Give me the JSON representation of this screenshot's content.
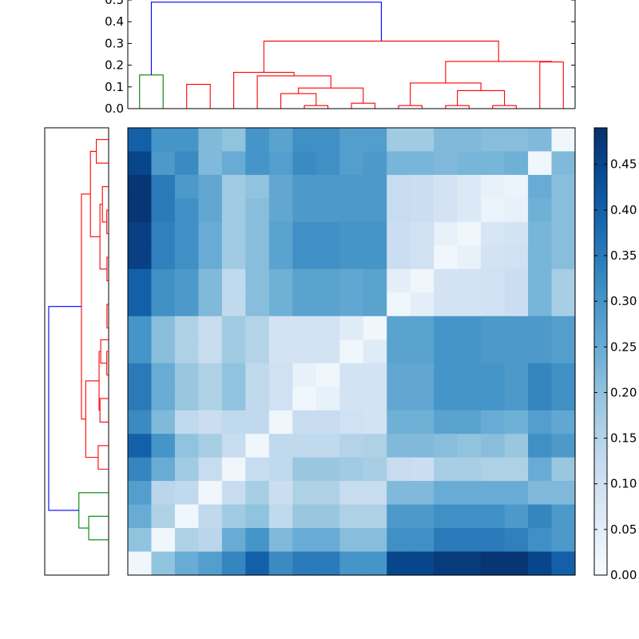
{
  "chart_data": [
    {
      "type": "dendrogram",
      "panel": "top",
      "yticks": [
        "0.0",
        "0.1",
        "0.2",
        "0.3",
        "0.4",
        "0.5"
      ],
      "ylim": [
        0,
        0.5
      ],
      "colors": {
        "root": "#0000ff",
        "cluster_a": "#008000",
        "cluster_b": "#ff0000"
      },
      "merges": [
        {
          "leaves": [
            0.5,
            1.5
          ],
          "height": 0.155,
          "color": "green"
        },
        {
          "leaves": [
            2.5,
            3.5
          ],
          "height": 0.112,
          "color": "red"
        },
        {
          "leaves": [
            7.5,
            8.5
          ],
          "height": 0.014,
          "color": "red"
        },
        {
          "leaves": [
            6.5,
            8.0
          ],
          "height": 0.069,
          "color": "red"
        },
        {
          "leaves": [
            9.5,
            10.5
          ],
          "height": 0.025,
          "color": "red"
        },
        {
          "leaves": [
            7.25,
            10.0
          ],
          "height": 0.095,
          "color": "red"
        },
        {
          "leaves": [
            5.5,
            8.625
          ],
          "height": 0.151,
          "color": "red"
        },
        {
          "leaves": [
            4.5,
            7.06
          ],
          "height": 0.167,
          "color": "red"
        },
        {
          "leaves": [
            11.5,
            12.5
          ],
          "height": 0.014,
          "color": "red"
        },
        {
          "leaves": [
            13.5,
            14.5
          ],
          "height": 0.014,
          "color": "red"
        },
        {
          "leaves": [
            15.5,
            16.5
          ],
          "height": 0.014,
          "color": "red"
        },
        {
          "leaves": [
            14.0,
            16.0
          ],
          "height": 0.083,
          "color": "red"
        },
        {
          "leaves": [
            12.0,
            15.0
          ],
          "height": 0.118,
          "color": "red"
        },
        {
          "leaves": [
            17.5,
            18.5
          ],
          "height": 0.215,
          "color": "red"
        },
        {
          "leaves": [
            13.5,
            18.0
          ],
          "height": 0.217,
          "color": "red"
        },
        {
          "leaves": [
            5.78,
            15.75
          ],
          "height": 0.311,
          "color": "red"
        },
        {
          "leaves": [
            1.0,
            10.77
          ],
          "height": 0.49,
          "color": "blue"
        }
      ]
    },
    {
      "type": "dendrogram",
      "panel": "left",
      "colors": {
        "root": "#0000ff",
        "cluster_a": "#008000",
        "cluster_b": "#ff0000"
      },
      "merges": [
        {
          "leaves": [
            0.5,
            1.5
          ],
          "height": 0.081,
          "color": "red"
        },
        {
          "leaves": [
            3.5,
            4.5
          ],
          "height": 0.012,
          "color": "red"
        },
        {
          "leaves": [
            2.5,
            4.0
          ],
          "height": 0.041,
          "color": "red"
        },
        {
          "leaves": [
            5.5,
            6.5
          ],
          "height": 0.011,
          "color": "red"
        },
        {
          "leaves": [
            3.25,
            6.0
          ],
          "height": 0.057,
          "color": "red"
        },
        {
          "leaves": [
            1.0,
            4.625
          ],
          "height": 0.12,
          "color": "red"
        },
        {
          "leaves": [
            7.5,
            8.5
          ],
          "height": 0.011,
          "color": "red"
        },
        {
          "leaves": [
            9.5,
            10.5
          ],
          "height": 0.012,
          "color": "red"
        },
        {
          "leaves": [
            9.0,
            10.0
          ],
          "height": 0.052,
          "color": "red"
        },
        {
          "leaves": [
            11.5,
            12.5
          ],
          "height": 0.057,
          "color": "red"
        },
        {
          "leaves": [
            9.5,
            12.0
          ],
          "height": 0.063,
          "color": "red"
        },
        {
          "leaves": [
            13.5,
            14.5
          ],
          "height": 0.069,
          "color": "red"
        },
        {
          "leaves": [
            10.75,
            14.0
          ],
          "height": 0.151,
          "color": "red"
        },
        {
          "leaves": [
            2.8125,
            12.375
          ],
          "height": 0.179,
          "color": "red"
        },
        {
          "leaves": [
            16.5,
            17.5
          ],
          "height": 0.131,
          "color": "green"
        },
        {
          "leaves": [
            15.5,
            17.0
          ],
          "height": 0.196,
          "color": "green"
        },
        {
          "leaves": [
            7.59,
            16.25
          ],
          "height": 0.395,
          "color": "blue"
        }
      ]
    },
    {
      "type": "heatmap",
      "colormap": "Blues",
      "vmin": 0,
      "vmax": 0.49,
      "colorbar_ticks": [
        "0.00",
        "0.05",
        "0.10",
        "0.15",
        "0.20",
        "0.25",
        "0.30",
        "0.35",
        "0.40",
        "0.45"
      ],
      "rows": [
        [
          0.4,
          0.3,
          0.3,
          0.22,
          0.2,
          0.3,
          0.27,
          0.31,
          0.31,
          0.28,
          0.28,
          0.18,
          0.18,
          0.22,
          0.22,
          0.21,
          0.21,
          0.22,
          0.02
        ],
        [
          0.45,
          0.29,
          0.32,
          0.22,
          0.25,
          0.3,
          0.28,
          0.32,
          0.31,
          0.28,
          0.29,
          0.23,
          0.23,
          0.22,
          0.23,
          0.23,
          0.24,
          0.02,
          0.22
        ],
        [
          0.48,
          0.35,
          0.29,
          0.26,
          0.18,
          0.2,
          0.26,
          0.29,
          0.29,
          0.29,
          0.29,
          0.12,
          0.11,
          0.09,
          0.07,
          0.04,
          0.03,
          0.25,
          0.21
        ],
        [
          0.48,
          0.35,
          0.31,
          0.26,
          0.18,
          0.21,
          0.26,
          0.29,
          0.29,
          0.29,
          0.29,
          0.12,
          0.11,
          0.09,
          0.07,
          0.03,
          0.04,
          0.24,
          0.21
        ],
        [
          0.46,
          0.34,
          0.31,
          0.25,
          0.18,
          0.21,
          0.27,
          0.31,
          0.31,
          0.3,
          0.3,
          0.11,
          0.1,
          0.04,
          0.02,
          0.08,
          0.09,
          0.23,
          0.21
        ],
        [
          0.46,
          0.34,
          0.31,
          0.25,
          0.18,
          0.21,
          0.27,
          0.31,
          0.31,
          0.3,
          0.3,
          0.11,
          0.1,
          0.02,
          0.04,
          0.09,
          0.1,
          0.23,
          0.21
        ],
        [
          0.4,
          0.31,
          0.29,
          0.22,
          0.13,
          0.21,
          0.24,
          0.27,
          0.27,
          0.26,
          0.27,
          0.05,
          0.02,
          0.09,
          0.09,
          0.1,
          0.11,
          0.23,
          0.17
        ],
        [
          0.4,
          0.31,
          0.29,
          0.22,
          0.13,
          0.21,
          0.24,
          0.27,
          0.27,
          0.26,
          0.27,
          0.02,
          0.05,
          0.09,
          0.09,
          0.1,
          0.11,
          0.23,
          0.17
        ],
        [
          0.3,
          0.21,
          0.16,
          0.12,
          0.18,
          0.15,
          0.09,
          0.09,
          0.09,
          0.06,
          0.02,
          0.27,
          0.27,
          0.3,
          0.3,
          0.29,
          0.29,
          0.29,
          0.28
        ],
        [
          0.3,
          0.21,
          0.16,
          0.12,
          0.18,
          0.15,
          0.09,
          0.09,
          0.09,
          0.02,
          0.06,
          0.27,
          0.27,
          0.3,
          0.3,
          0.29,
          0.29,
          0.29,
          0.28
        ],
        [
          0.35,
          0.25,
          0.19,
          0.16,
          0.2,
          0.13,
          0.1,
          0.04,
          0.02,
          0.09,
          0.09,
          0.26,
          0.26,
          0.3,
          0.3,
          0.3,
          0.29,
          0.33,
          0.31
        ],
        [
          0.35,
          0.25,
          0.19,
          0.16,
          0.2,
          0.13,
          0.1,
          0.02,
          0.04,
          0.09,
          0.09,
          0.26,
          0.26,
          0.3,
          0.3,
          0.3,
          0.29,
          0.33,
          0.31
        ],
        [
          0.32,
          0.22,
          0.13,
          0.11,
          0.13,
          0.13,
          0.02,
          0.12,
          0.12,
          0.1,
          0.09,
          0.24,
          0.24,
          0.27,
          0.27,
          0.25,
          0.24,
          0.28,
          0.26
        ],
        [
          0.4,
          0.3,
          0.2,
          0.17,
          0.12,
          0.02,
          0.13,
          0.13,
          0.13,
          0.15,
          0.16,
          0.22,
          0.22,
          0.21,
          0.2,
          0.21,
          0.19,
          0.31,
          0.29
        ],
        [
          0.33,
          0.25,
          0.18,
          0.12,
          0.02,
          0.12,
          0.13,
          0.19,
          0.19,
          0.18,
          0.17,
          0.12,
          0.11,
          0.17,
          0.17,
          0.16,
          0.16,
          0.25,
          0.19
        ],
        [
          0.28,
          0.14,
          0.13,
          0.02,
          0.12,
          0.17,
          0.11,
          0.16,
          0.16,
          0.12,
          0.12,
          0.22,
          0.22,
          0.25,
          0.25,
          0.25,
          0.25,
          0.22,
          0.22
        ],
        [
          0.25,
          0.16,
          0.02,
          0.13,
          0.18,
          0.2,
          0.13,
          0.19,
          0.19,
          0.16,
          0.16,
          0.29,
          0.29,
          0.31,
          0.31,
          0.31,
          0.29,
          0.33,
          0.29
        ],
        [
          0.2,
          0.02,
          0.16,
          0.14,
          0.25,
          0.3,
          0.22,
          0.25,
          0.25,
          0.21,
          0.21,
          0.31,
          0.31,
          0.35,
          0.35,
          0.35,
          0.34,
          0.31,
          0.29
        ],
        [
          0.02,
          0.2,
          0.25,
          0.28,
          0.33,
          0.4,
          0.32,
          0.35,
          0.35,
          0.3,
          0.3,
          0.45,
          0.45,
          0.47,
          0.47,
          0.48,
          0.48,
          0.45,
          0.4
        ]
      ]
    }
  ]
}
